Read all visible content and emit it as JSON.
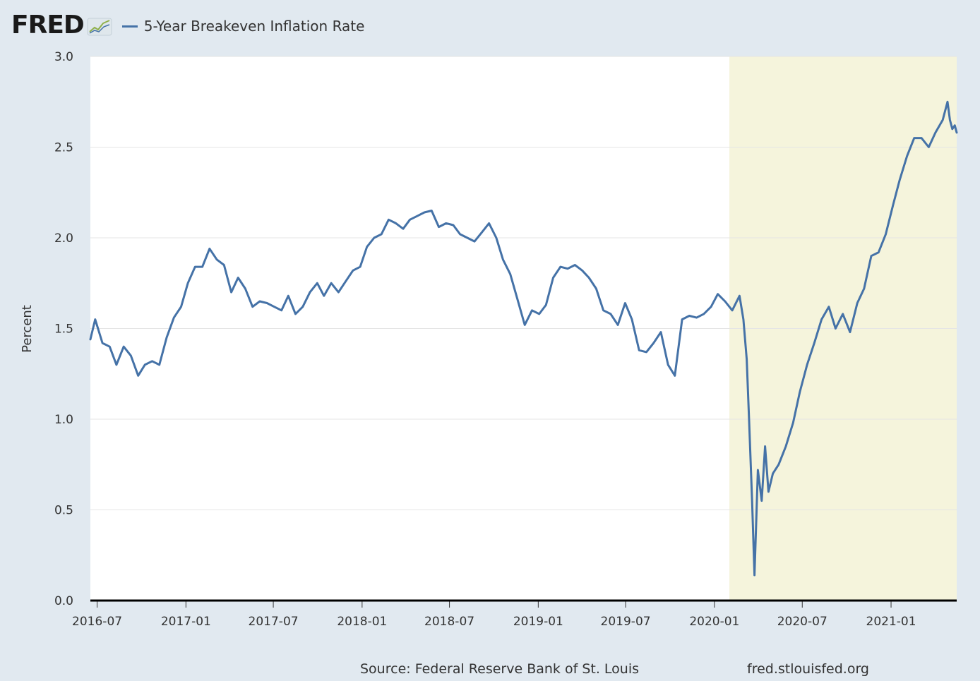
{
  "header": {
    "logo_text": "FRED",
    "logo_icon": "trend-line-icon"
  },
  "footer": {
    "source": "Source: Federal Reserve Bank of St. Louis",
    "url": "fred.stlouisfed.org"
  },
  "colors": {
    "background": "#e1e9f0",
    "plot_background": "#ffffff",
    "series": "#4572a7",
    "recession": "#f5f4dc",
    "grid": "#e5e5e5"
  },
  "chart_data": {
    "type": "line",
    "title": "",
    "xlabel": "",
    "ylabel": "Percent",
    "ylim": [
      0,
      3
    ],
    "xlim": [
      "2016-06-17",
      "2021-05-17"
    ],
    "y_ticks": [
      0.0,
      0.5,
      1.0,
      1.5,
      2.0,
      2.5,
      3.0
    ],
    "y_tick_labels": [
      "0.0",
      "0.5",
      "1.0",
      "1.5",
      "2.0",
      "2.5",
      "3.0"
    ],
    "x_ticks": [
      "2016-07-01",
      "2017-01-01",
      "2017-07-01",
      "2018-01-01",
      "2018-07-01",
      "2019-01-01",
      "2019-07-01",
      "2020-01-01",
      "2020-07-01",
      "2021-01-01"
    ],
    "x_tick_labels": [
      "2016-07",
      "2017-01",
      "2017-07",
      "2018-01",
      "2018-07",
      "2019-01",
      "2019-07",
      "2020-01",
      "2020-07",
      "2021-01"
    ],
    "grid": true,
    "legend_position": "top-left",
    "shaded_regions": [
      {
        "start": "2020-02-01",
        "end": "2021-05-17"
      }
    ],
    "series": [
      {
        "name": "5-Year Breakeven Inflation Rate",
        "x": [
          "2016-06-17",
          "2016-06-27",
          "2016-07-12",
          "2016-07-27",
          "2016-08-10",
          "2016-08-25",
          "2016-09-09",
          "2016-09-24",
          "2016-10-08",
          "2016-10-23",
          "2016-11-07",
          "2016-11-22",
          "2016-12-07",
          "2016-12-22",
          "2017-01-05",
          "2017-01-20",
          "2017-02-04",
          "2017-02-19",
          "2017-03-06",
          "2017-03-21",
          "2017-04-05",
          "2017-04-19",
          "2017-05-04",
          "2017-05-19",
          "2017-06-03",
          "2017-06-18",
          "2017-07-03",
          "2017-07-18",
          "2017-08-01",
          "2017-08-16",
          "2017-08-31",
          "2017-09-15",
          "2017-09-30",
          "2017-10-14",
          "2017-10-29",
          "2017-11-13",
          "2017-11-28",
          "2017-12-13",
          "2017-12-28",
          "2018-01-11",
          "2018-01-26",
          "2018-02-10",
          "2018-02-25",
          "2018-03-12",
          "2018-03-27",
          "2018-04-10",
          "2018-04-25",
          "2018-05-10",
          "2018-05-25",
          "2018-06-09",
          "2018-06-24",
          "2018-07-09",
          "2018-07-23",
          "2018-08-07",
          "2018-08-22",
          "2018-09-06",
          "2018-09-21",
          "2018-10-06",
          "2018-10-20",
          "2018-11-04",
          "2018-11-19",
          "2018-12-04",
          "2018-12-19",
          "2019-01-03",
          "2019-01-17",
          "2019-02-01",
          "2019-02-16",
          "2019-03-03",
          "2019-03-18",
          "2019-04-02",
          "2019-04-16",
          "2019-05-01",
          "2019-05-16",
          "2019-05-31",
          "2019-06-15",
          "2019-06-30",
          "2019-07-14",
          "2019-07-29",
          "2019-08-13",
          "2019-08-28",
          "2019-09-12",
          "2019-09-27",
          "2019-10-11",
          "2019-10-26",
          "2019-11-10",
          "2019-11-25",
          "2019-12-10",
          "2019-12-25",
          "2020-01-08",
          "2020-01-23",
          "2020-02-07",
          "2020-02-22",
          "2020-03-01",
          "2020-03-08",
          "2020-03-13",
          "2020-03-19",
          "2020-03-24",
          "2020-03-31",
          "2020-04-08",
          "2020-04-15",
          "2020-04-22",
          "2020-05-01",
          "2020-05-13",
          "2020-05-28",
          "2020-06-12",
          "2020-06-26",
          "2020-07-11",
          "2020-07-26",
          "2020-08-10",
          "2020-08-25",
          "2020-09-08",
          "2020-09-23",
          "2020-10-08",
          "2020-10-23",
          "2020-11-06",
          "2020-11-21",
          "2020-12-06",
          "2020-12-21",
          "2021-01-05",
          "2021-01-19",
          "2021-02-03",
          "2021-02-18",
          "2021-03-05",
          "2021-03-20",
          "2021-04-03",
          "2021-04-18",
          "2021-04-28",
          "2021-05-03",
          "2021-05-08",
          "2021-05-13",
          "2021-05-17"
        ],
        "values": [
          1.44,
          1.55,
          1.42,
          1.4,
          1.3,
          1.4,
          1.35,
          1.24,
          1.3,
          1.32,
          1.3,
          1.45,
          1.56,
          1.62,
          1.75,
          1.84,
          1.84,
          1.94,
          1.88,
          1.85,
          1.7,
          1.78,
          1.72,
          1.62,
          1.65,
          1.64,
          1.62,
          1.6,
          1.68,
          1.58,
          1.62,
          1.7,
          1.75,
          1.68,
          1.75,
          1.7,
          1.76,
          1.82,
          1.84,
          1.95,
          2.0,
          2.02,
          2.1,
          2.08,
          2.05,
          2.1,
          2.12,
          2.14,
          2.15,
          2.06,
          2.08,
          2.07,
          2.02,
          2.0,
          1.98,
          2.03,
          2.08,
          2.0,
          1.88,
          1.8,
          1.66,
          1.52,
          1.6,
          1.58,
          1.63,
          1.78,
          1.84,
          1.83,
          1.85,
          1.82,
          1.78,
          1.72,
          1.6,
          1.58,
          1.52,
          1.64,
          1.55,
          1.38,
          1.37,
          1.42,
          1.48,
          1.3,
          1.24,
          1.55,
          1.57,
          1.56,
          1.58,
          1.62,
          1.69,
          1.65,
          1.6,
          1.68,
          1.55,
          1.33,
          0.98,
          0.55,
          0.14,
          0.72,
          0.55,
          0.85,
          0.6,
          0.7,
          0.75,
          0.85,
          0.98,
          1.15,
          1.3,
          1.42,
          1.55,
          1.62,
          1.5,
          1.58,
          1.48,
          1.64,
          1.72,
          1.9,
          1.92,
          2.02,
          2.18,
          2.32,
          2.45,
          2.55,
          2.55,
          2.5,
          2.58,
          2.65,
          2.75,
          2.65,
          2.6,
          2.62,
          2.58
        ]
      }
    ]
  }
}
